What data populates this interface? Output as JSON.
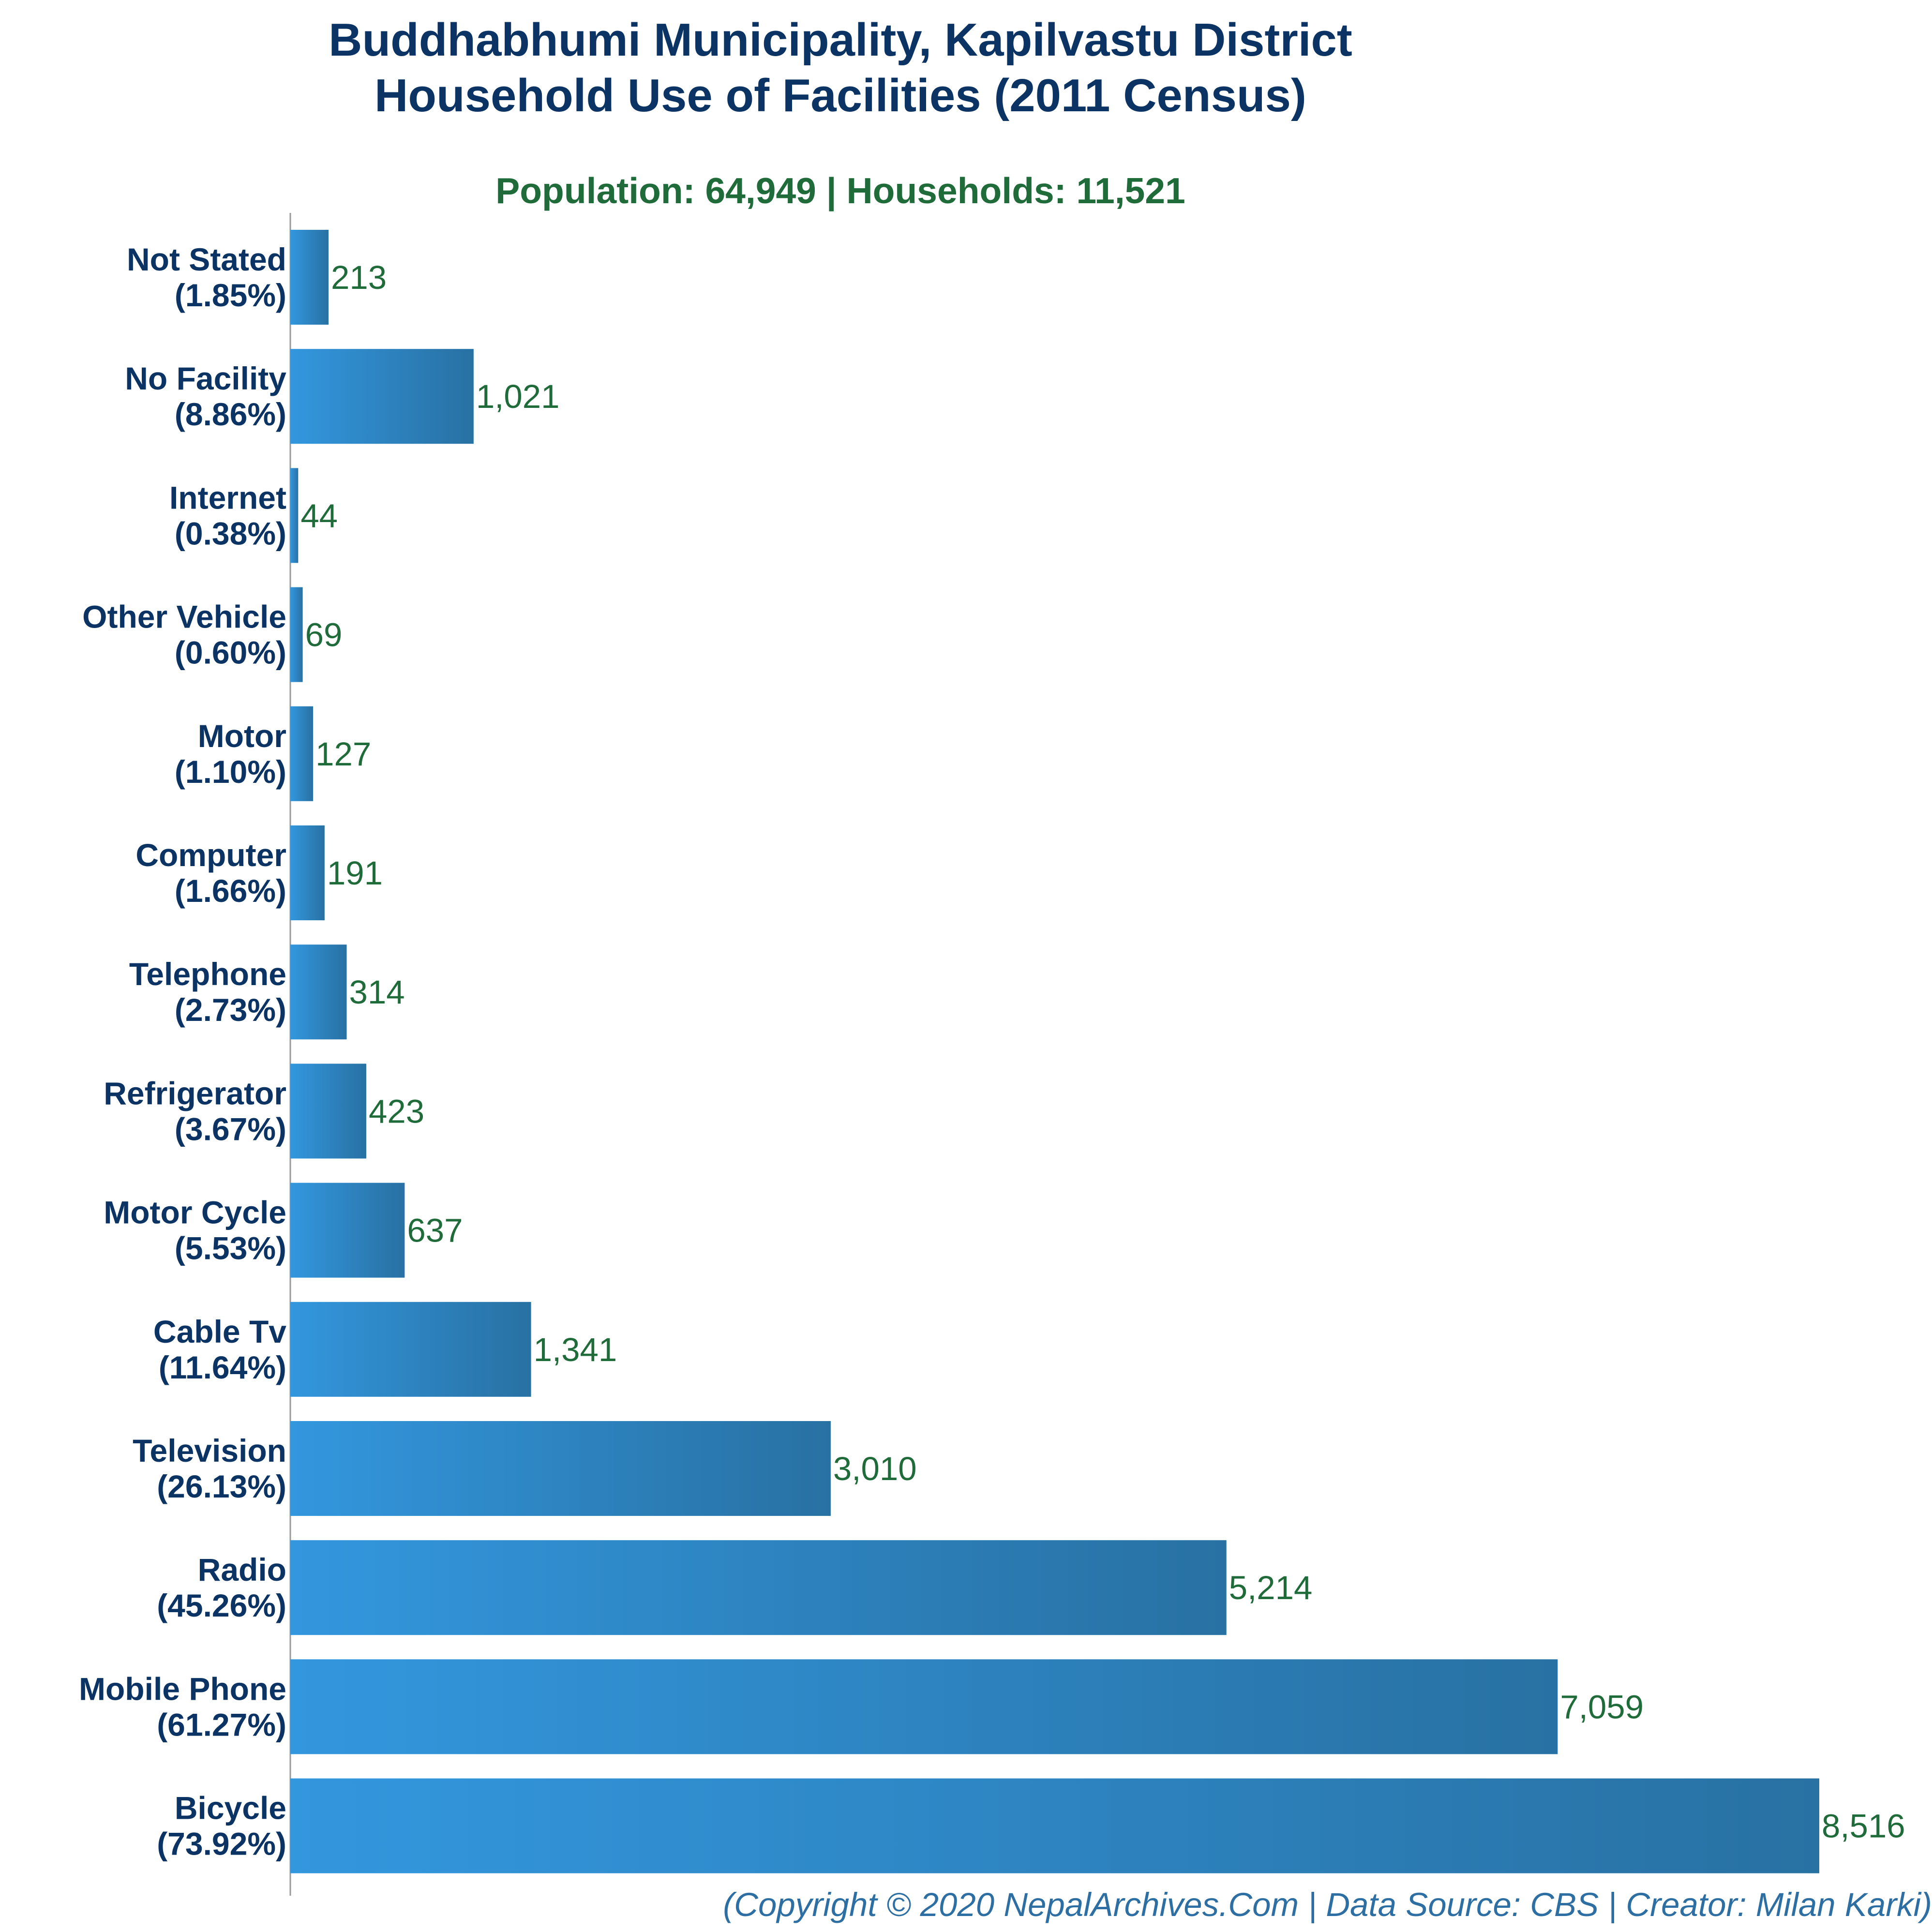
{
  "chart_data": {
    "type": "bar",
    "orientation": "horizontal",
    "title": "Buddhabhumi Municipality, Kapilvastu District",
    "title_line2": "Household Use of Facilities (2011 Census)",
    "subtitle": "Population: 64,949 | Households: 11,521",
    "footer": "(Copyright © 2020 NepalArchives.Com | Data Source: CBS | Creator: Milan Karki)",
    "xlabel": "",
    "ylabel": "",
    "grid": false,
    "legend": "none",
    "xlim": [
      0,
      8516
    ],
    "categories": [
      "Not Stated",
      "No Facility",
      "Internet",
      "Other Vehicle",
      "Motor",
      "Computer",
      "Telephone",
      "Refrigerator",
      "Motor Cycle",
      "Cable Tv",
      "Television",
      "Radio",
      "Mobile Phone",
      "Bicycle"
    ],
    "percentages": [
      "(1.85%)",
      "(8.86%)",
      "(0.38%)",
      "(0.60%)",
      "(1.10%)",
      "(1.66%)",
      "(2.73%)",
      "(3.67%)",
      "(5.53%)",
      "(11.64%)",
      "(26.13%)",
      "(45.26%)",
      "(61.27%)",
      "(73.92%)"
    ],
    "values": [
      213,
      1021,
      44,
      69,
      127,
      191,
      314,
      423,
      637,
      1341,
      3010,
      5214,
      7059,
      8516
    ],
    "value_labels": [
      "213",
      "1,021",
      "44",
      "69",
      "127",
      "191",
      "314",
      "423",
      "637",
      "1,341",
      "3,010",
      "5,214",
      "7,059",
      "8,516"
    ],
    "colors": {
      "bar_start": "#3397de",
      "bar_end": "#2871a3",
      "title": "#0b3363",
      "subtitle": "#1f6b3a",
      "value_label": "#1f6b3a",
      "category_label": "#0b3363",
      "footer": "#2e6fa3",
      "axis": "#999999"
    }
  }
}
